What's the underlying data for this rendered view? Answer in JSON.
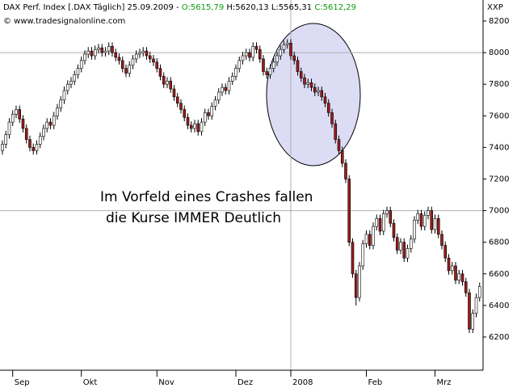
{
  "chart_data": {
    "type": "candlestick",
    "header": {
      "title": "DAX Perf. Index [.DAX Täglich] 25.09.2009 -",
      "open": "O:5615,79",
      "high_low": "H:5620,13 L:5565,31",
      "close": "C:5612,29"
    },
    "copyright": "© www.tradesignalonline.com",
    "axis_label": "XXP",
    "annotation": [
      "Im Vorfeld eines Crashes fallen",
      "die Kurse IMMER Deutlich"
    ],
    "up_color": "#ffffff",
    "down_color": "#9b1c1c",
    "annotation_color": "#0000ee",
    "xlim": [
      -0.7,
      140
    ],
    "ylim": [
      5990,
      8333
    ],
    "xticks": [
      {
        "value": 3,
        "label": "Sep"
      },
      {
        "value": 23,
        "label": "Okt"
      },
      {
        "value": 45,
        "label": "Nov"
      },
      {
        "value": 68,
        "label": "Dez"
      },
      {
        "value": 84,
        "label": "2008"
      },
      {
        "value": 106,
        "label": "Feb"
      },
      {
        "value": 126,
        "label": "Mrz"
      }
    ],
    "yticks": [
      6200,
      6400,
      6600,
      6800,
      7000,
      7200,
      7400,
      7600,
      7800,
      8000,
      8200
    ],
    "ygrid": [
      7000,
      8000
    ],
    "xgrid": [
      84
    ],
    "ohlc": [
      [
        7380,
        7445,
        7355,
        7420
      ],
      [
        7420,
        7505,
        7395,
        7480
      ],
      [
        7480,
        7585,
        7455,
        7560
      ],
      [
        7560,
        7635,
        7535,
        7610
      ],
      [
        7610,
        7665,
        7585,
        7640
      ],
      [
        7640,
        7665,
        7555,
        7580
      ],
      [
        7580,
        7605,
        7495,
        7520
      ],
      [
        7520,
        7545,
        7425,
        7450
      ],
      [
        7450,
        7475,
        7375,
        7400
      ],
      [
        7400,
        7425,
        7355,
        7380
      ],
      [
        7380,
        7445,
        7355,
        7420
      ],
      [
        7420,
        7495,
        7395,
        7470
      ],
      [
        7470,
        7545,
        7445,
        7520
      ],
      [
        7520,
        7585,
        7495,
        7560
      ],
      [
        7560,
        7585,
        7515,
        7540
      ],
      [
        7540,
        7625,
        7515,
        7600
      ],
      [
        7600,
        7675,
        7575,
        7650
      ],
      [
        7650,
        7725,
        7625,
        7700
      ],
      [
        7700,
        7785,
        7675,
        7760
      ],
      [
        7760,
        7825,
        7735,
        7800
      ],
      [
        7800,
        7845,
        7775,
        7820
      ],
      [
        7820,
        7885,
        7795,
        7860
      ],
      [
        7860,
        7925,
        7835,
        7900
      ],
      [
        7900,
        7975,
        7875,
        7950
      ],
      [
        7950,
        8015,
        7925,
        7990
      ],
      [
        7990,
        8035,
        7965,
        8010
      ],
      [
        8010,
        8035,
        7955,
        7980
      ],
      [
        7980,
        8045,
        7955,
        8020
      ],
      [
        8020,
        8055,
        7995,
        8030
      ],
      [
        8030,
        8055,
        7975,
        8000
      ],
      [
        8000,
        8035,
        7975,
        8010
      ],
      [
        8010,
        8065,
        7985,
        8040
      ],
      [
        8040,
        8065,
        7975,
        8000
      ],
      [
        8000,
        8025,
        7945,
        7970
      ],
      [
        7970,
        7995,
        7925,
        7950
      ],
      [
        7950,
        7975,
        7875,
        7900
      ],
      [
        7900,
        7925,
        7845,
        7870
      ],
      [
        7870,
        7945,
        7845,
        7920
      ],
      [
        7920,
        7985,
        7895,
        7960
      ],
      [
        7960,
        8015,
        7935,
        7990
      ],
      [
        7990,
        8025,
        7965,
        8000
      ],
      [
        8000,
        8035,
        7975,
        8010
      ],
      [
        8010,
        8035,
        7955,
        7980
      ],
      [
        7980,
        8005,
        7935,
        7960
      ],
      [
        7960,
        7985,
        7915,
        7940
      ],
      [
        7940,
        7965,
        7875,
        7900
      ],
      [
        7900,
        7925,
        7825,
        7850
      ],
      [
        7850,
        7875,
        7775,
        7800
      ],
      [
        7800,
        7845,
        7775,
        7820
      ],
      [
        7820,
        7845,
        7745,
        7770
      ],
      [
        7770,
        7795,
        7695,
        7720
      ],
      [
        7720,
        7745,
        7655,
        7680
      ],
      [
        7680,
        7705,
        7615,
        7640
      ],
      [
        7640,
        7665,
        7565,
        7590
      ],
      [
        7590,
        7615,
        7515,
        7540
      ],
      [
        7540,
        7565,
        7495,
        7520
      ],
      [
        7520,
        7575,
        7495,
        7550
      ],
      [
        7550,
        7575,
        7475,
        7500
      ],
      [
        7500,
        7585,
        7475,
        7560
      ],
      [
        7560,
        7645,
        7535,
        7620
      ],
      [
        7620,
        7645,
        7575,
        7600
      ],
      [
        7600,
        7685,
        7575,
        7660
      ],
      [
        7660,
        7725,
        7635,
        7700
      ],
      [
        7700,
        7775,
        7675,
        7750
      ],
      [
        7750,
        7805,
        7725,
        7780
      ],
      [
        7780,
        7805,
        7735,
        7760
      ],
      [
        7760,
        7845,
        7735,
        7820
      ],
      [
        7820,
        7875,
        7795,
        7850
      ],
      [
        7850,
        7925,
        7825,
        7900
      ],
      [
        7900,
        7975,
        7875,
        7950
      ],
      [
        7950,
        8005,
        7925,
        7980
      ],
      [
        7980,
        8025,
        7955,
        8000
      ],
      [
        8000,
        8025,
        7945,
        7970
      ],
      [
        7970,
        8065,
        7945,
        8040
      ],
      [
        8040,
        8065,
        7995,
        8020
      ],
      [
        8020,
        8045,
        7935,
        7960
      ],
      [
        7960,
        7985,
        7855,
        7880
      ],
      [
        7880,
        7905,
        7835,
        7860
      ],
      [
        7860,
        7925,
        7835,
        7900
      ],
      [
        7900,
        7965,
        7875,
        7940
      ],
      [
        7940,
        8005,
        7915,
        7980
      ],
      [
        7980,
        8045,
        7955,
        8020
      ],
      [
        8020,
        8075,
        7995,
        8050
      ],
      [
        8050,
        8085,
        8025,
        8060
      ],
      [
        8060,
        8085,
        7955,
        7980
      ],
      [
        7980,
        8005,
        7925,
        7950
      ],
      [
        7950,
        7975,
        7855,
        7880
      ],
      [
        7880,
        7905,
        7815,
        7840
      ],
      [
        7840,
        7865,
        7775,
        7800
      ],
      [
        7800,
        7835,
        7775,
        7810
      ],
      [
        7810,
        7835,
        7755,
        7780
      ],
      [
        7780,
        7805,
        7725,
        7750
      ],
      [
        7750,
        7785,
        7725,
        7760
      ],
      [
        7760,
        7785,
        7695,
        7720
      ],
      [
        7720,
        7745,
        7655,
        7680
      ],
      [
        7680,
        7705,
        7595,
        7620
      ],
      [
        7620,
        7645,
        7525,
        7550
      ],
      [
        7550,
        7575,
        7425,
        7450
      ],
      [
        7450,
        7475,
        7355,
        7380
      ],
      [
        7380,
        7405,
        7275,
        7300
      ],
      [
        7300,
        7325,
        7175,
        7200
      ],
      [
        7200,
        7225,
        6775,
        6800
      ],
      [
        6800,
        6825,
        6575,
        6600
      ],
      [
        6600,
        6625,
        6400,
        6450
      ],
      [
        6450,
        6675,
        6425,
        6650
      ],
      [
        6650,
        6815,
        6625,
        6790
      ],
      [
        6790,
        6875,
        6765,
        6850
      ],
      [
        6850,
        6875,
        6755,
        6780
      ],
      [
        6780,
        6925,
        6755,
        6900
      ],
      [
        6900,
        6975,
        6875,
        6950
      ],
      [
        6950,
        6975,
        6845,
        6870
      ],
      [
        6870,
        7005,
        6845,
        6980
      ],
      [
        6980,
        7025,
        6955,
        7000
      ],
      [
        7000,
        7025,
        6895,
        6920
      ],
      [
        6920,
        6945,
        6805,
        6830
      ],
      [
        6830,
        6855,
        6725,
        6750
      ],
      [
        6750,
        6825,
        6725,
        6800
      ],
      [
        6800,
        6825,
        6675,
        6700
      ],
      [
        6700,
        6785,
        6675,
        6760
      ],
      [
        6760,
        6845,
        6735,
        6820
      ],
      [
        6820,
        6965,
        6795,
        6940
      ],
      [
        6940,
        7005,
        6915,
        6980
      ],
      [
        6980,
        7005,
        6875,
        6900
      ],
      [
        6900,
        6995,
        6875,
        6970
      ],
      [
        6970,
        7025,
        6945,
        7000
      ],
      [
        7000,
        7025,
        6855,
        6880
      ],
      [
        6880,
        6975,
        6855,
        6950
      ],
      [
        6950,
        6975,
        6825,
        6850
      ],
      [
        6850,
        6875,
        6755,
        6780
      ],
      [
        6780,
        6805,
        6675,
        6700
      ],
      [
        6700,
        6725,
        6595,
        6620
      ],
      [
        6620,
        6675,
        6595,
        6650
      ],
      [
        6650,
        6675,
        6535,
        6560
      ],
      [
        6560,
        6625,
        6535,
        6600
      ],
      [
        6600,
        6625,
        6525,
        6550
      ],
      [
        6550,
        6575,
        6455,
        6480
      ],
      [
        6480,
        6505,
        6225,
        6250
      ],
      [
        6250,
        6375,
        6225,
        6350
      ],
      [
        6350,
        6475,
        6325,
        6450
      ],
      [
        6450,
        6545,
        6425,
        6520
      ]
    ]
  }
}
